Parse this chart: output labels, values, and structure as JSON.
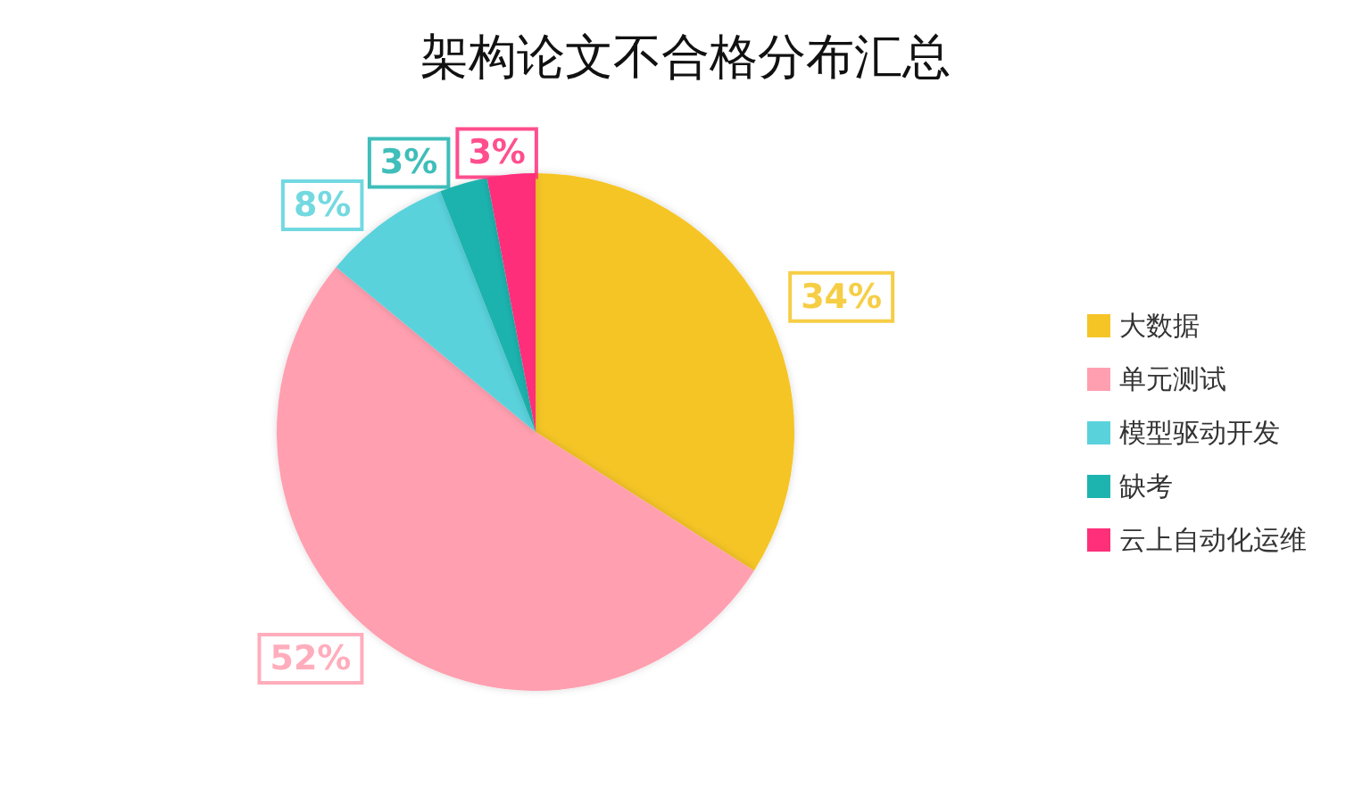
{
  "chart_data": {
    "type": "pie",
    "title": "架构论文不合格分布汇总",
    "categories": [
      "大数据",
      "单元测试",
      "模型驱动开发",
      "缺考",
      "云上自动化运维"
    ],
    "values": [
      34,
      52,
      8,
      3,
      3
    ],
    "colors": [
      "#f5c526",
      "#ff9fb0",
      "#5ad2dc",
      "#1db3ae",
      "#ff2f7a"
    ],
    "value_labels": [
      "34%",
      "52%",
      "8%",
      "3%",
      "3%"
    ],
    "legend": "right"
  }
}
